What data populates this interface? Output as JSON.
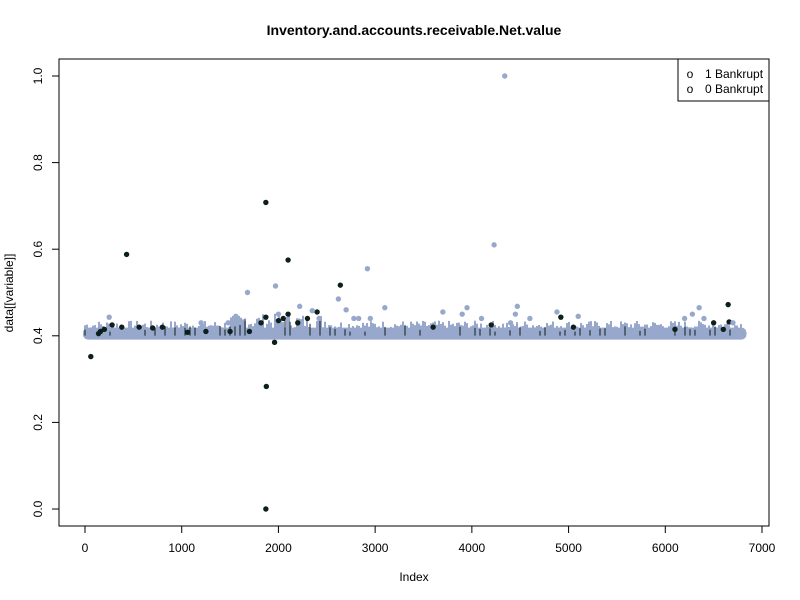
{
  "chart_data": {
    "type": "scatter",
    "title": "Inventory.and.accounts.receivable.Net.value",
    "xlabel": "Index",
    "ylabel": "data[[variable]]",
    "xlim": [
      0,
      7000
    ],
    "ylim": [
      0,
      1.0
    ],
    "x_ticks": [
      0,
      1000,
      2000,
      3000,
      4000,
      5000,
      6000,
      7000
    ],
    "y_ticks": [
      0.0,
      0.2,
      0.4,
      0.6,
      0.8,
      1.0
    ],
    "x_tick_labels": [
      "0",
      "1000",
      "2000",
      "3000",
      "4000",
      "5000",
      "6000",
      "7000"
    ],
    "y_tick_labels": [
      "0.0",
      "0.2",
      "0.4",
      "0.6",
      "0.8",
      "1.0"
    ],
    "grid": false,
    "legend": {
      "position": "top-right",
      "entries": [
        {
          "label": "1 Bankrupt",
          "symbol": "o"
        },
        {
          "label": "0 Bankrupt",
          "symbol": "o"
        }
      ]
    },
    "colors": {
      "bankrupt_1": "#0d1f1a",
      "bankrupt_0": "#98a8cc"
    },
    "band": {
      "x_range": [
        0,
        6819
      ],
      "y_center": 0.405
    },
    "series": [
      {
        "name": "1 Bankrupt",
        "points": [
          [
            60,
            0.352
          ],
          [
            140,
            0.405
          ],
          [
            160,
            0.41
          ],
          [
            200,
            0.415
          ],
          [
            280,
            0.425
          ],
          [
            380,
            0.42
          ],
          [
            430,
            0.588
          ],
          [
            560,
            0.42
          ],
          [
            700,
            0.418
          ],
          [
            800,
            0.42
          ],
          [
            1060,
            0.408
          ],
          [
            1250,
            0.41
          ],
          [
            1500,
            0.41
          ],
          [
            1700,
            0.41
          ],
          [
            1820,
            0.43
          ],
          [
            1870,
            0.708
          ],
          [
            1870,
            0.443
          ],
          [
            1875,
            0.283
          ],
          [
            1870,
            0.0
          ],
          [
            1960,
            0.385
          ],
          [
            2000,
            0.435
          ],
          [
            2050,
            0.44
          ],
          [
            2100,
            0.575
          ],
          [
            2100,
            0.45
          ],
          [
            2200,
            0.43
          ],
          [
            2300,
            0.44
          ],
          [
            2400,
            0.455
          ],
          [
            2640,
            0.517
          ],
          [
            3600,
            0.42
          ],
          [
            4200,
            0.425
          ],
          [
            4920,
            0.443
          ],
          [
            5050,
            0.42
          ],
          [
            6100,
            0.415
          ],
          [
            6500,
            0.43
          ],
          [
            6600,
            0.415
          ],
          [
            6650,
            0.472
          ],
          [
            6660,
            0.432
          ]
        ]
      },
      {
        "name": "0 Bankrupt",
        "points": [
          [
            250,
            0.443
          ],
          [
            1200,
            0.43
          ],
          [
            1480,
            0.43
          ],
          [
            1560,
            0.445
          ],
          [
            1680,
            0.5
          ],
          [
            1970,
            0.515
          ],
          [
            2000,
            0.45
          ],
          [
            2220,
            0.468
          ],
          [
            2350,
            0.458
          ],
          [
            2420,
            0.44
          ],
          [
            2620,
            0.485
          ],
          [
            2700,
            0.46
          ],
          [
            2780,
            0.44
          ],
          [
            2830,
            0.44
          ],
          [
            2920,
            0.555
          ],
          [
            2950,
            0.44
          ],
          [
            3100,
            0.465
          ],
          [
            3700,
            0.455
          ],
          [
            3900,
            0.45
          ],
          [
            3950,
            0.465
          ],
          [
            4100,
            0.44
          ],
          [
            4230,
            0.61
          ],
          [
            4340,
            1.0
          ],
          [
            4400,
            0.43
          ],
          [
            4450,
            0.45
          ],
          [
            4470,
            0.468
          ],
          [
            4600,
            0.44
          ],
          [
            4880,
            0.455
          ],
          [
            5100,
            0.445
          ],
          [
            6200,
            0.44
          ],
          [
            6280,
            0.45
          ],
          [
            6350,
            0.465
          ],
          [
            6400,
            0.44
          ],
          [
            6700,
            0.43
          ]
        ]
      }
    ]
  }
}
